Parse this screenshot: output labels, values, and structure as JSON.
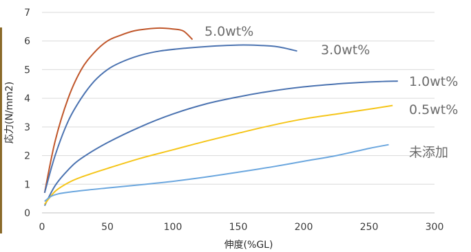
{
  "chart_data": {
    "type": "line",
    "title": "",
    "xlabel": "伸度(%GL)",
    "ylabel": "応力(N/mm2)",
    "xlim": [
      0,
      300
    ],
    "ylim": [
      0,
      7
    ],
    "xticks": [
      "0",
      "50",
      "100",
      "150",
      "200",
      "250",
      "300"
    ],
    "yticks": [
      "0",
      "1",
      "2",
      "3",
      "4",
      "5",
      "6",
      "7"
    ],
    "grid": "horizontal",
    "legend": "inline labels at right",
    "series": [
      {
        "name": "5.0wt%",
        "color": "#c0562a",
        "points": [
          [
            2,
            0.7
          ],
          [
            10,
            2.5
          ],
          [
            20,
            4.0
          ],
          [
            30,
            5.0
          ],
          [
            40,
            5.6
          ],
          [
            50,
            6.0
          ],
          [
            60,
            6.2
          ],
          [
            70,
            6.35
          ],
          [
            80,
            6.42
          ],
          [
            90,
            6.45
          ],
          [
            100,
            6.42
          ],
          [
            108,
            6.35
          ],
          [
            115,
            6.05
          ]
        ]
      },
      {
        "name": "3.0wt%",
        "color": "#4a72b0",
        "points": [
          [
            2,
            0.7
          ],
          [
            10,
            2.0
          ],
          [
            20,
            3.2
          ],
          [
            30,
            4.0
          ],
          [
            40,
            4.6
          ],
          [
            50,
            5.0
          ],
          [
            60,
            5.25
          ],
          [
            75,
            5.5
          ],
          [
            90,
            5.65
          ],
          [
            110,
            5.75
          ],
          [
            130,
            5.82
          ],
          [
            150,
            5.86
          ],
          [
            165,
            5.85
          ],
          [
            180,
            5.8
          ],
          [
            195,
            5.65
          ]
        ]
      },
      {
        "name": "1.0wt%",
        "color": "#4a72b0",
        "points": [
          [
            2,
            0.25
          ],
          [
            10,
            0.95
          ],
          [
            20,
            1.5
          ],
          [
            30,
            1.9
          ],
          [
            50,
            2.45
          ],
          [
            75,
            3.0
          ],
          [
            100,
            3.45
          ],
          [
            125,
            3.8
          ],
          [
            150,
            4.05
          ],
          [
            175,
            4.25
          ],
          [
            200,
            4.4
          ],
          [
            225,
            4.5
          ],
          [
            250,
            4.57
          ],
          [
            272,
            4.6
          ]
        ]
      },
      {
        "name": "0.5wt%",
        "color": "#f5c518",
        "points": [
          [
            2,
            0.3
          ],
          [
            10,
            0.75
          ],
          [
            20,
            1.05
          ],
          [
            30,
            1.25
          ],
          [
            50,
            1.55
          ],
          [
            75,
            1.9
          ],
          [
            100,
            2.2
          ],
          [
            125,
            2.5
          ],
          [
            150,
            2.78
          ],
          [
            175,
            3.05
          ],
          [
            200,
            3.28
          ],
          [
            225,
            3.45
          ],
          [
            250,
            3.62
          ],
          [
            268,
            3.75
          ]
        ]
      },
      {
        "name": "未添加",
        "color": "#6aa6de",
        "points": [
          [
            2,
            0.4
          ],
          [
            8,
            0.6
          ],
          [
            20,
            0.72
          ],
          [
            50,
            0.87
          ],
          [
            75,
            0.98
          ],
          [
            100,
            1.1
          ],
          [
            125,
            1.25
          ],
          [
            150,
            1.42
          ],
          [
            175,
            1.6
          ],
          [
            200,
            1.8
          ],
          [
            225,
            2.0
          ],
          [
            250,
            2.25
          ],
          [
            265,
            2.38
          ]
        ]
      }
    ]
  }
}
